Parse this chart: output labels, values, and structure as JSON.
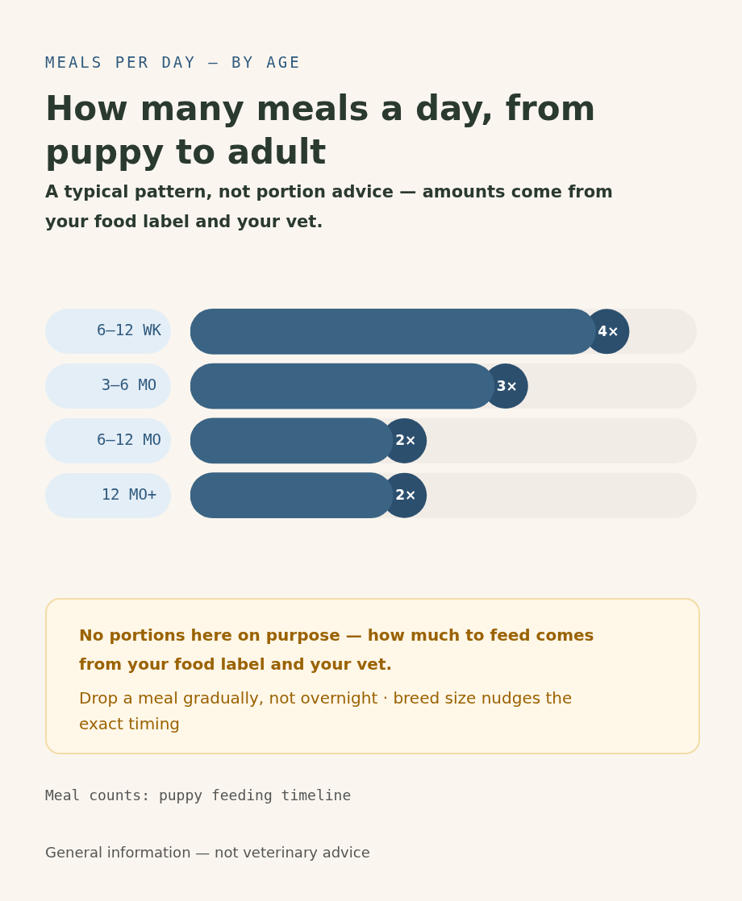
{
  "chart_data": {
    "type": "bar",
    "orientation": "horizontal",
    "title": "How many meals a day, from puppy to adult",
    "subtitle": "A typical pattern, not portion advice — amounts come from your food label and your vet.",
    "categories": [
      "6–12 WK",
      "3–6 MO",
      "6–12 MO",
      "12 MO+"
    ],
    "values": [
      4,
      3,
      2,
      2
    ],
    "value_labels": [
      "4×",
      "3×",
      "2×",
      "2×"
    ],
    "color": "#3b6484",
    "legend": false,
    "annotations": [
      "MEALS PER DAY — BY AGE",
      "No portions here on purpose — how much to feed comes from your food label and your vet.",
      "Drop a meal gradually, not overnight · breed size nudges the exact timing",
      "Meal counts: puppy feeding timeline",
      "General information — not veterinary advice"
    ]
  }
}
